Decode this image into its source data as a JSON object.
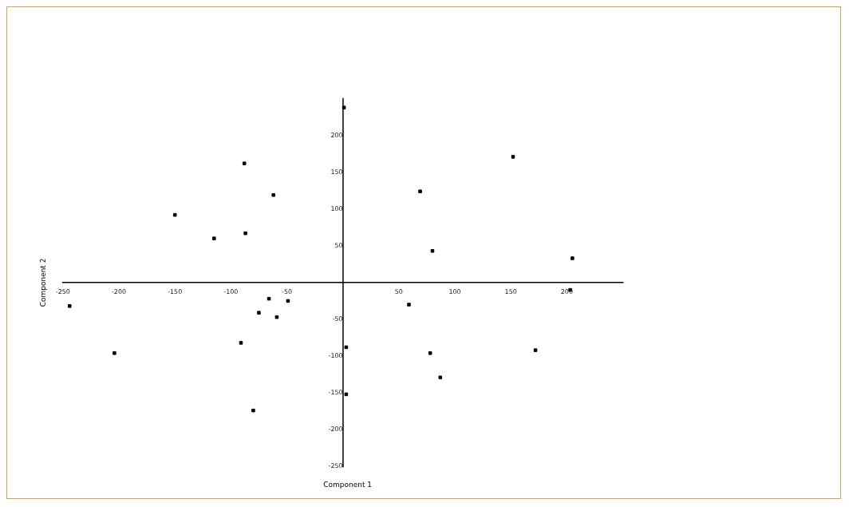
{
  "chart_data": {
    "type": "scatter",
    "xlabel": "Component 1",
    "ylabel": "Component 2",
    "x": [
      -88,
      -62,
      -150,
      -115,
      -87,
      -244,
      -204,
      -66,
      -75,
      -91,
      -80,
      -49,
      -59,
      152,
      69,
      80,
      205,
      203,
      59,
      78,
      87,
      172,
      1,
      3,
      3
    ],
    "values": [
      162,
      119,
      92,
      60,
      67,
      -32,
      -96,
      -22,
      -41,
      -82,
      -174,
      -25,
      -47,
      171,
      124,
      43,
      33,
      -10,
      -30,
      -96,
      -129,
      -92,
      238,
      -88,
      -152
    ],
    "color": "#000000",
    "marker": "square",
    "grid": false,
    "legend": false,
    "xlim": [
      -250,
      250
    ],
    "ylim": [
      -250,
      250
    ],
    "xticks": [
      -250,
      -200,
      -150,
      -100,
      -50,
      50,
      100,
      150,
      200
    ],
    "yticks": [
      -250,
      -200,
      -150,
      -100,
      -50,
      50,
      100,
      150,
      200
    ]
  }
}
